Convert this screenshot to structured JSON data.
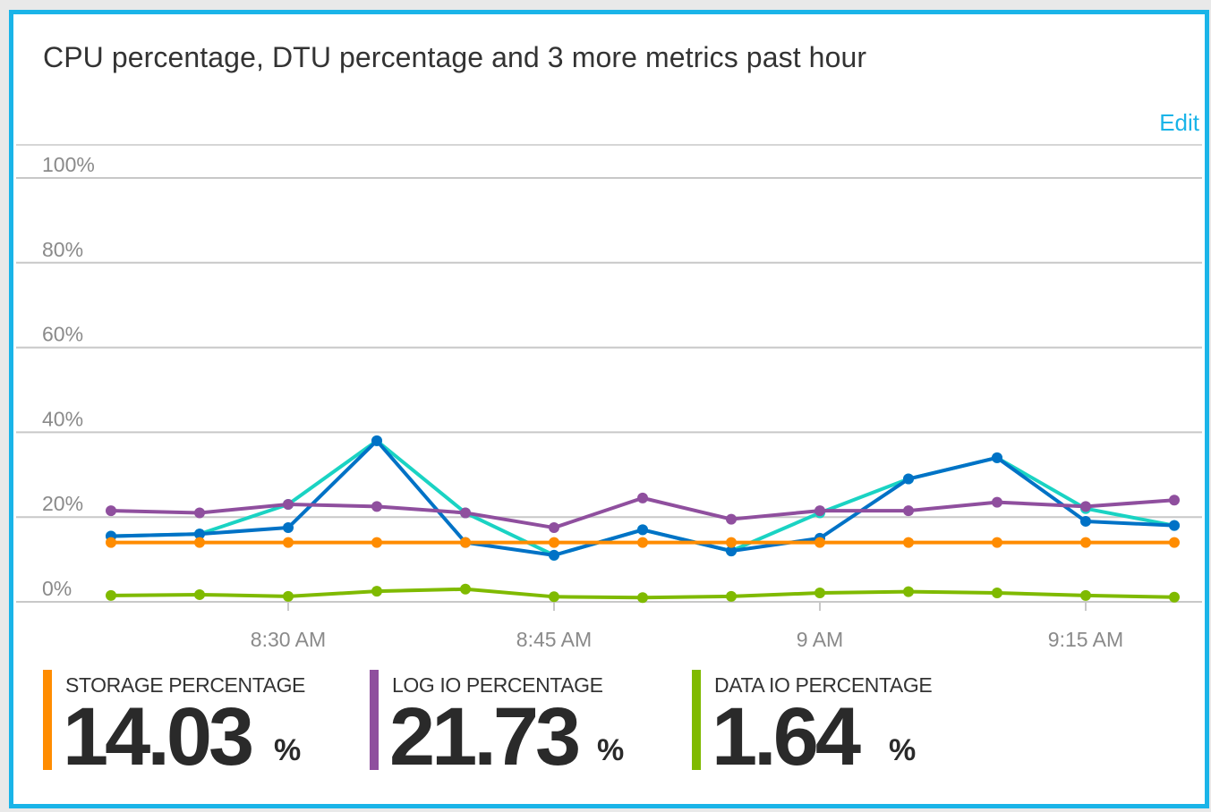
{
  "tile": {
    "title": "CPU percentage, DTU percentage and 3 more metrics past hour",
    "edit_label": "Edit"
  },
  "chart_data": {
    "type": "line",
    "x": [
      "8:20 AM",
      "8:25 AM",
      "8:30 AM",
      "8:35 AM",
      "8:40 AM",
      "8:45 AM",
      "8:50 AM",
      "8:55 AM",
      "9 AM",
      "9:05 AM",
      "9:10 AM",
      "9:15 AM",
      "9:20 AM"
    ],
    "x_tick_labels": [
      "8:30 AM",
      "8:45 AM",
      "9 AM",
      "9:15 AM"
    ],
    "y_tick_labels": [
      "100%",
      "80%",
      "60%",
      "40%",
      "20%",
      "0%"
    ],
    "ylim": [
      0,
      100
    ],
    "grid": true,
    "series": [
      {
        "color": "#1ad3c3",
        "values": [
          15.5,
          16,
          23,
          38,
          21,
          11,
          17,
          12,
          21,
          29,
          34,
          22,
          18
        ]
      },
      {
        "color": "#0072c6",
        "values": [
          15.5,
          16,
          17.5,
          38,
          14,
          11,
          17,
          12,
          15,
          29,
          34,
          19,
          18
        ]
      },
      {
        "name": "LOG IO PERCENTAGE",
        "color": "#8f4f9e",
        "values": [
          21.5,
          21,
          23,
          22.5,
          21,
          17.5,
          24.5,
          19.5,
          21.5,
          21.5,
          23.5,
          22.5,
          24
        ]
      },
      {
        "name": "STORAGE PERCENTAGE",
        "color": "#ff8c00",
        "values": [
          14,
          14,
          14,
          14,
          14,
          14,
          14,
          14,
          14,
          14,
          14,
          14,
          14
        ]
      },
      {
        "name": "DATA IO PERCENTAGE",
        "color": "#7fba00",
        "values": [
          1.5,
          1.7,
          1.3,
          2.5,
          3,
          1.2,
          1,
          1.3,
          2.1,
          2.4,
          2.1,
          1.5,
          1.1
        ]
      }
    ]
  },
  "metrics": [
    {
      "label": "STORAGE PERCENTAGE",
      "value": "14.03",
      "unit": "%",
      "color": "#ff8c00"
    },
    {
      "label": "LOG IO PERCENTAGE",
      "value": "21.73",
      "unit": "%",
      "color": "#8f4f9e"
    },
    {
      "label": "DATA IO PERCENTAGE",
      "value": "1.64",
      "unit": "%",
      "color": "#7fba00"
    }
  ]
}
